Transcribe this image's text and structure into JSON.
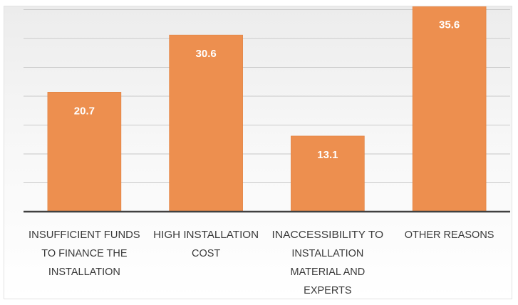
{
  "chart_data": {
    "type": "bar",
    "categories": [
      [
        "INSUFFICIENT FUNDS",
        "TO FINANCE THE",
        "INSTALLATION"
      ],
      [
        "HIGH INSTALLATION",
        "COST"
      ],
      [
        "INACCESSIBILITY TO",
        "INSTALLATION",
        "MATERIAL AND",
        "EXPERTS"
      ],
      [
        "OTHER REASONS"
      ]
    ],
    "values": [
      20.7,
      30.6,
      13.1,
      35.6
    ],
    "data_labels": [
      "20.7",
      "30.6",
      "13.1",
      "35.6"
    ],
    "title": "",
    "xlabel": "",
    "ylabel": "",
    "ylim": [
      0,
      40
    ],
    "grid": true,
    "gridline_step": 5,
    "legend": "none",
    "colors": {
      "bar": "#ed8f4f",
      "bar_edge": "#e07f3e",
      "label_text": "#ffffff",
      "axis": "#404040",
      "grid": "#c9c9c9",
      "category_text": "#3a3a3a"
    }
  }
}
